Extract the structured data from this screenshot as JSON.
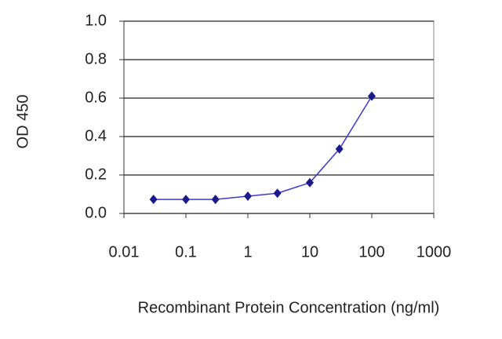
{
  "chart_data": {
    "type": "line",
    "xlabel": "Recombinant Protein Concentration (ng/ml)",
    "ylabel": "OD 450",
    "xscale": "log",
    "xlim": [
      0.01,
      1000
    ],
    "xticks": [
      0.01,
      0.1,
      1,
      10,
      100,
      1000
    ],
    "ylim": [
      0,
      1
    ],
    "yticks": [
      {
        "value": 0,
        "label": "0.0"
      },
      0.2,
      0.4,
      0.6,
      0.8,
      {
        "value": 1,
        "label": "1.0"
      }
    ],
    "grid": true,
    "series": [
      {
        "color": "#1a1a8c",
        "x": [
          0.03,
          0.1,
          0.3,
          1,
          3,
          10,
          30,
          100
        ],
        "values": [
          0.073,
          0.073,
          0.073,
          0.09,
          0.105,
          0.16,
          0.335,
          0.61
        ]
      }
    ]
  }
}
